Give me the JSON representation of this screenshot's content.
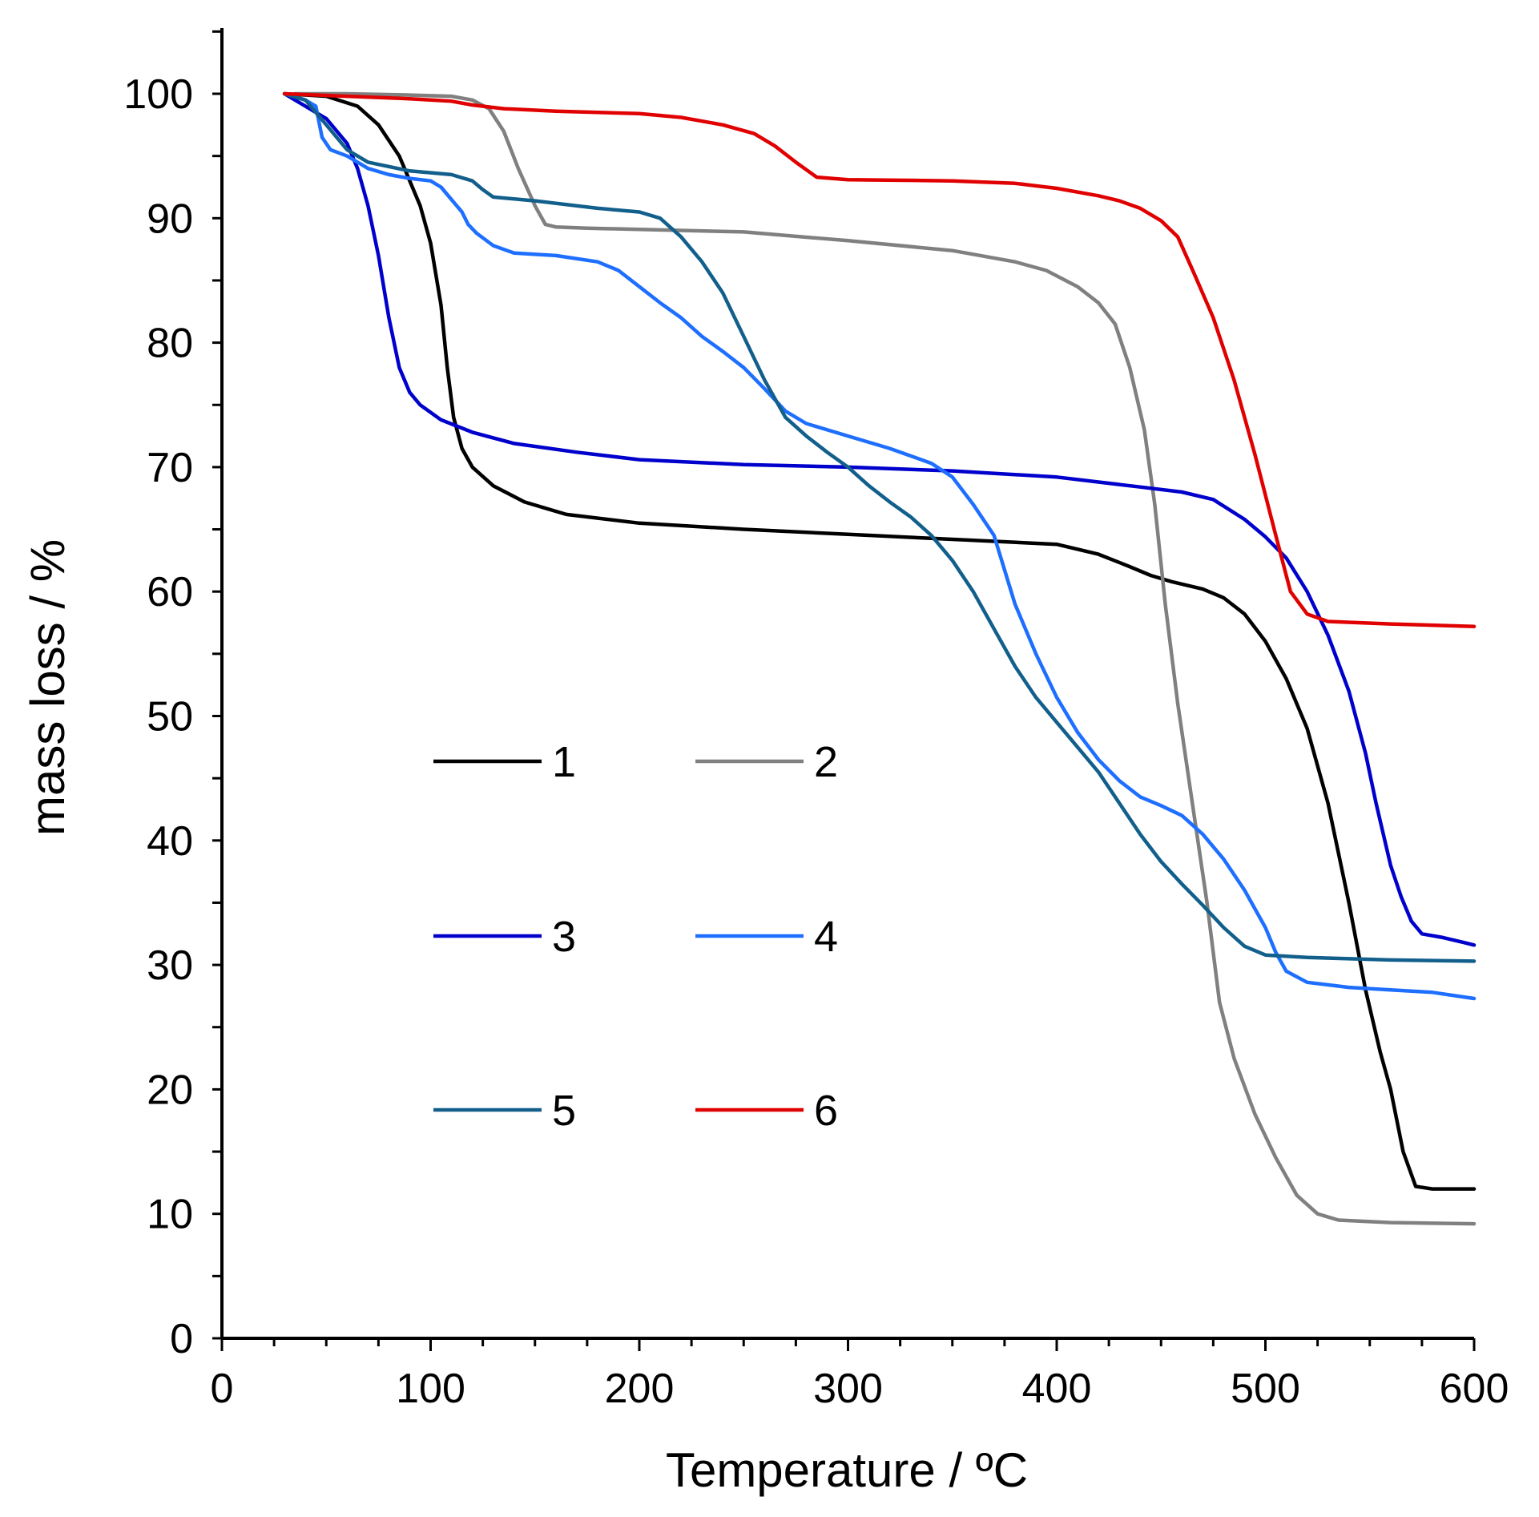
{
  "chart_data": {
    "type": "line",
    "title": "",
    "xlabel": "Temperature  / ºC",
    "ylabel": "mass loss / %",
    "xlim": [
      0,
      600
    ],
    "ylim": [
      0,
      100
    ],
    "x_ticks": [
      0,
      100,
      200,
      300,
      400,
      500,
      600
    ],
    "x_tick_labels": [
      "0",
      "100",
      "200",
      "300",
      "400",
      "500",
      "600"
    ],
    "y_ticks": [
      0,
      10,
      20,
      30,
      40,
      50,
      60,
      70,
      80,
      90,
      100
    ],
    "y_tick_labels": [
      "0",
      "10",
      "20",
      "30",
      "40",
      "50",
      "60",
      "70",
      "80",
      "90",
      "100"
    ],
    "grid": false,
    "legend_position": "center-left",
    "series": [
      {
        "name": "1",
        "color": "#000000",
        "points": [
          [
            30,
            100
          ],
          [
            50,
            99.8
          ],
          [
            65,
            99
          ],
          [
            75,
            97.5
          ],
          [
            85,
            95
          ],
          [
            95,
            91
          ],
          [
            100,
            88
          ],
          [
            105,
            83
          ],
          [
            108,
            78
          ],
          [
            111,
            74
          ],
          [
            115,
            71.5
          ],
          [
            120,
            70
          ],
          [
            130,
            68.5
          ],
          [
            145,
            67.2
          ],
          [
            165,
            66.2
          ],
          [
            200,
            65.5
          ],
          [
            250,
            65
          ],
          [
            300,
            64.6
          ],
          [
            350,
            64.2
          ],
          [
            400,
            63.8
          ],
          [
            420,
            63
          ],
          [
            435,
            62
          ],
          [
            445,
            61.3
          ],
          [
            455,
            60.8
          ],
          [
            470,
            60.2
          ],
          [
            480,
            59.5
          ],
          [
            490,
            58.2
          ],
          [
            500,
            56
          ],
          [
            510,
            53
          ],
          [
            520,
            49
          ],
          [
            530,
            43
          ],
          [
            540,
            35
          ],
          [
            548,
            28
          ],
          [
            555,
            23
          ],
          [
            560,
            20
          ],
          [
            566,
            15
          ],
          [
            572,
            12.2
          ],
          [
            580,
            12
          ],
          [
            600,
            12
          ]
        ]
      },
      {
        "name": "2",
        "color": "#808080",
        "points": [
          [
            35,
            100
          ],
          [
            60,
            100
          ],
          [
            90,
            99.9
          ],
          [
            110,
            99.8
          ],
          [
            120,
            99.5
          ],
          [
            128,
            98.8
          ],
          [
            135,
            97
          ],
          [
            142,
            94
          ],
          [
            150,
            91
          ],
          [
            155,
            89.5
          ],
          [
            160,
            89.3
          ],
          [
            175,
            89.2
          ],
          [
            200,
            89.1
          ],
          [
            250,
            88.9
          ],
          [
            300,
            88.2
          ],
          [
            350,
            87.4
          ],
          [
            380,
            86.5
          ],
          [
            395,
            85.8
          ],
          [
            410,
            84.5
          ],
          [
            420,
            83.2
          ],
          [
            428,
            81.5
          ],
          [
            435,
            78
          ],
          [
            442,
            73
          ],
          [
            447,
            67
          ],
          [
            452,
            59
          ],
          [
            458,
            51
          ],
          [
            465,
            43
          ],
          [
            472,
            35
          ],
          [
            478,
            27
          ],
          [
            485,
            22.5
          ],
          [
            495,
            18
          ],
          [
            505,
            14.5
          ],
          [
            515,
            11.5
          ],
          [
            525,
            10
          ],
          [
            535,
            9.5
          ],
          [
            560,
            9.3
          ],
          [
            600,
            9.2
          ]
        ]
      },
      {
        "name": "3",
        "color": "#0000CC",
        "points": [
          [
            30,
            100
          ],
          [
            40,
            99
          ],
          [
            50,
            98
          ],
          [
            60,
            96
          ],
          [
            65,
            94
          ],
          [
            70,
            91
          ],
          [
            75,
            87
          ],
          [
            80,
            82
          ],
          [
            85,
            78
          ],
          [
            90,
            76
          ],
          [
            95,
            75
          ],
          [
            105,
            73.8
          ],
          [
            120,
            72.8
          ],
          [
            140,
            71.9
          ],
          [
            170,
            71.2
          ],
          [
            200,
            70.6
          ],
          [
            250,
            70.2
          ],
          [
            300,
            70
          ],
          [
            350,
            69.7
          ],
          [
            400,
            69.2
          ],
          [
            420,
            68.8
          ],
          [
            440,
            68.4
          ],
          [
            460,
            68
          ],
          [
            475,
            67.4
          ],
          [
            490,
            65.8
          ],
          [
            500,
            64.4
          ],
          [
            510,
            62.7
          ],
          [
            520,
            60
          ],
          [
            530,
            56.5
          ],
          [
            540,
            52
          ],
          [
            548,
            47
          ],
          [
            553,
            43
          ],
          [
            560,
            38
          ],
          [
            565,
            35.5
          ],
          [
            570,
            33.5
          ],
          [
            575,
            32.5
          ],
          [
            585,
            32.2
          ],
          [
            595,
            31.8
          ],
          [
            600,
            31.6
          ]
        ]
      },
      {
        "name": "4",
        "color": "#1E6FFF",
        "points": [
          [
            30,
            100
          ],
          [
            40,
            99.5
          ],
          [
            45,
            99
          ],
          [
            48,
            96.5
          ],
          [
            52,
            95.5
          ],
          [
            60,
            95
          ],
          [
            70,
            94
          ],
          [
            80,
            93.5
          ],
          [
            90,
            93.2
          ],
          [
            100,
            93
          ],
          [
            105,
            92.5
          ],
          [
            110,
            91.5
          ],
          [
            115,
            90.5
          ],
          [
            118,
            89.5
          ],
          [
            122,
            88.8
          ],
          [
            130,
            87.8
          ],
          [
            140,
            87.2
          ],
          [
            160,
            87
          ],
          [
            180,
            86.5
          ],
          [
            190,
            85.8
          ],
          [
            200,
            84.5
          ],
          [
            210,
            83.2
          ],
          [
            220,
            82
          ],
          [
            230,
            80.5
          ],
          [
            240,
            79.3
          ],
          [
            250,
            78
          ],
          [
            260,
            76.3
          ],
          [
            270,
            74.5
          ],
          [
            280,
            73.5
          ],
          [
            300,
            72.5
          ],
          [
            320,
            71.5
          ],
          [
            340,
            70.3
          ],
          [
            350,
            69.2
          ],
          [
            360,
            67
          ],
          [
            370,
            64.5
          ],
          [
            380,
            59
          ],
          [
            390,
            55
          ],
          [
            400,
            51.5
          ],
          [
            410,
            48.7
          ],
          [
            420,
            46.5
          ],
          [
            430,
            44.8
          ],
          [
            440,
            43.5
          ],
          [
            450,
            42.8
          ],
          [
            460,
            42
          ],
          [
            470,
            40.5
          ],
          [
            480,
            38.5
          ],
          [
            490,
            36
          ],
          [
            500,
            33
          ],
          [
            505,
            31
          ],
          [
            510,
            29.5
          ],
          [
            520,
            28.6
          ],
          [
            540,
            28.2
          ],
          [
            560,
            28
          ],
          [
            580,
            27.8
          ],
          [
            600,
            27.3
          ]
        ]
      },
      {
        "name": "5",
        "color": "#125F8C",
        "points": [
          [
            30,
            100
          ],
          [
            40,
            99.5
          ],
          [
            50,
            97.5
          ],
          [
            60,
            95.5
          ],
          [
            70,
            94.5
          ],
          [
            90,
            93.8
          ],
          [
            110,
            93.5
          ],
          [
            120,
            93
          ],
          [
            125,
            92.3
          ],
          [
            130,
            91.7
          ],
          [
            150,
            91.4
          ],
          [
            180,
            90.8
          ],
          [
            200,
            90.5
          ],
          [
            210,
            90
          ],
          [
            220,
            88.5
          ],
          [
            230,
            86.5
          ],
          [
            240,
            84
          ],
          [
            250,
            80.5
          ],
          [
            260,
            77
          ],
          [
            270,
            74
          ],
          [
            280,
            72.5
          ],
          [
            290,
            71.2
          ],
          [
            300,
            70
          ],
          [
            310,
            68.5
          ],
          [
            320,
            67.2
          ],
          [
            330,
            66
          ],
          [
            340,
            64.5
          ],
          [
            350,
            62.5
          ],
          [
            360,
            60
          ],
          [
            370,
            57
          ],
          [
            380,
            54
          ],
          [
            390,
            51.5
          ],
          [
            400,
            49.5
          ],
          [
            410,
            47.5
          ],
          [
            420,
            45.5
          ],
          [
            430,
            43
          ],
          [
            440,
            40.5
          ],
          [
            450,
            38.3
          ],
          [
            460,
            36.5
          ],
          [
            470,
            34.8
          ],
          [
            480,
            33
          ],
          [
            490,
            31.5
          ],
          [
            500,
            30.8
          ],
          [
            520,
            30.6
          ],
          [
            560,
            30.4
          ],
          [
            600,
            30.3
          ]
        ]
      },
      {
        "name": "6",
        "color": "#E00000",
        "points": [
          [
            30,
            100
          ],
          [
            60,
            99.8
          ],
          [
            90,
            99.6
          ],
          [
            110,
            99.4
          ],
          [
            120,
            99.1
          ],
          [
            135,
            98.8
          ],
          [
            160,
            98.6
          ],
          [
            200,
            98.4
          ],
          [
            220,
            98.1
          ],
          [
            240,
            97.5
          ],
          [
            255,
            96.8
          ],
          [
            265,
            95.8
          ],
          [
            275,
            94.5
          ],
          [
            285,
            93.3
          ],
          [
            300,
            93.1
          ],
          [
            350,
            93
          ],
          [
            380,
            92.8
          ],
          [
            400,
            92.4
          ],
          [
            420,
            91.8
          ],
          [
            430,
            91.4
          ],
          [
            440,
            90.8
          ],
          [
            450,
            89.8
          ],
          [
            458,
            88.5
          ],
          [
            466,
            85.5
          ],
          [
            475,
            82
          ],
          [
            485,
            77
          ],
          [
            495,
            71
          ],
          [
            505,
            64.5
          ],
          [
            512,
            60
          ],
          [
            520,
            58.2
          ],
          [
            530,
            57.6
          ],
          [
            560,
            57.4
          ],
          [
            600,
            57.2
          ]
        ]
      }
    ]
  }
}
